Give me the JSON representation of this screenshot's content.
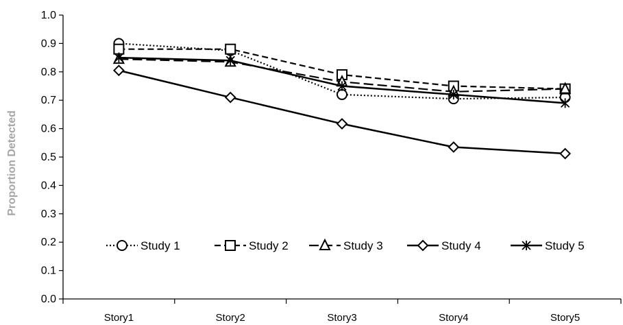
{
  "chart_data": {
    "type": "line",
    "categories": [
      "Story1",
      "Story2",
      "Story3",
      "Story4",
      "Story5"
    ],
    "ylabel": "Proportion Detected",
    "xlabel": "",
    "ylim": [
      0,
      1.0
    ],
    "yticks": [
      "0.0",
      "0.1",
      "0.2",
      "0.3",
      "0.4",
      "0.5",
      "0.6",
      "0.7",
      "0.8",
      "0.9",
      "1.0"
    ],
    "grid": false,
    "legend": "inside-bottom",
    "series": [
      {
        "name": "Study 1",
        "values": [
          0.9,
          0.875,
          0.72,
          0.705,
          0.71
        ],
        "marker": "circle",
        "line": "dotted"
      },
      {
        "name": "Study 2",
        "values": [
          0.88,
          0.88,
          0.79,
          0.75,
          0.74
        ],
        "marker": "square",
        "line": "dashed"
      },
      {
        "name": "Study 3",
        "values": [
          0.845,
          0.835,
          0.765,
          0.73,
          0.74
        ],
        "marker": "triangle",
        "line": "longdash"
      },
      {
        "name": "Study 4",
        "values": [
          0.805,
          0.71,
          0.617,
          0.535,
          0.512
        ],
        "marker": "diamond",
        "line": "solid"
      },
      {
        "name": "Study 5",
        "values": [
          0.85,
          0.84,
          0.75,
          0.72,
          0.69
        ],
        "marker": "asterisk",
        "line": "solid"
      }
    ]
  }
}
